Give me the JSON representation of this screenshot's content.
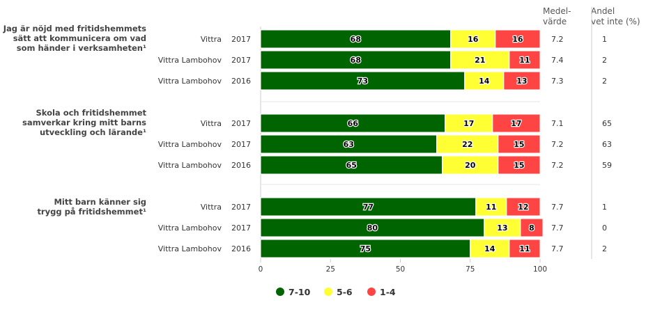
{
  "chart_data": {
    "type": "bar",
    "orientation": "horizontal",
    "stacked": true,
    "xlim": [
      0,
      100
    ],
    "xticks": [
      "0",
      "25",
      "50",
      "75",
      "100"
    ],
    "grid": false,
    "legend_position": "bottom",
    "header_mean": [
      "Medel-",
      "värde"
    ],
    "header_dontknow": [
      "Andel",
      "vet inte (%)"
    ],
    "series": [
      {
        "name": "7-10",
        "color": "#006400"
      },
      {
        "name": "5-6",
        "color": "#ffff33"
      },
      {
        "name": "1-4",
        "color": "#ff4444"
      }
    ],
    "groups": [
      {
        "title": [
          "Jag är nöjd med fritidshemmets",
          "sätt att kommunicera om vad",
          "som händer i verksamheten¹"
        ],
        "rows": [
          {
            "name": "Vittra",
            "year": "2017",
            "values": [
              68,
              16,
              16
            ],
            "mean": "7.2",
            "dont_know": "1"
          },
          {
            "name": "Vittra Lambohov",
            "year": "2017",
            "values": [
              68,
              21,
              11
            ],
            "mean": "7.4",
            "dont_know": "2"
          },
          {
            "name": "Vittra Lambohov",
            "year": "2016",
            "values": [
              73,
              14,
              13
            ],
            "mean": "7.3",
            "dont_know": "2"
          }
        ]
      },
      {
        "title": [
          "Skola och fritidshemmet",
          "samverkar kring mitt barns",
          "utveckling och lärande¹"
        ],
        "rows": [
          {
            "name": "Vittra",
            "year": "2017",
            "values": [
              66,
              17,
              17
            ],
            "mean": "7.1",
            "dont_know": "65"
          },
          {
            "name": "Vittra Lambohov",
            "year": "2017",
            "values": [
              63,
              22,
              15
            ],
            "mean": "7.2",
            "dont_know": "63"
          },
          {
            "name": "Vittra Lambohov",
            "year": "2016",
            "values": [
              65,
              20,
              15
            ],
            "mean": "7.2",
            "dont_know": "59"
          }
        ]
      },
      {
        "title": [
          "Mitt barn känner sig",
          "trygg på fritidshemmet¹"
        ],
        "rows": [
          {
            "name": "Vittra",
            "year": "2017",
            "values": [
              77,
              11,
              12
            ],
            "mean": "7.7",
            "dont_know": "1"
          },
          {
            "name": "Vittra Lambohov",
            "year": "2017",
            "values": [
              80,
              13,
              8
            ],
            "mean": "7.7",
            "dont_know": "0"
          },
          {
            "name": "Vittra Lambohov",
            "year": "2016",
            "values": [
              75,
              14,
              11
            ],
            "mean": "7.7",
            "dont_know": "2"
          }
        ]
      }
    ]
  }
}
